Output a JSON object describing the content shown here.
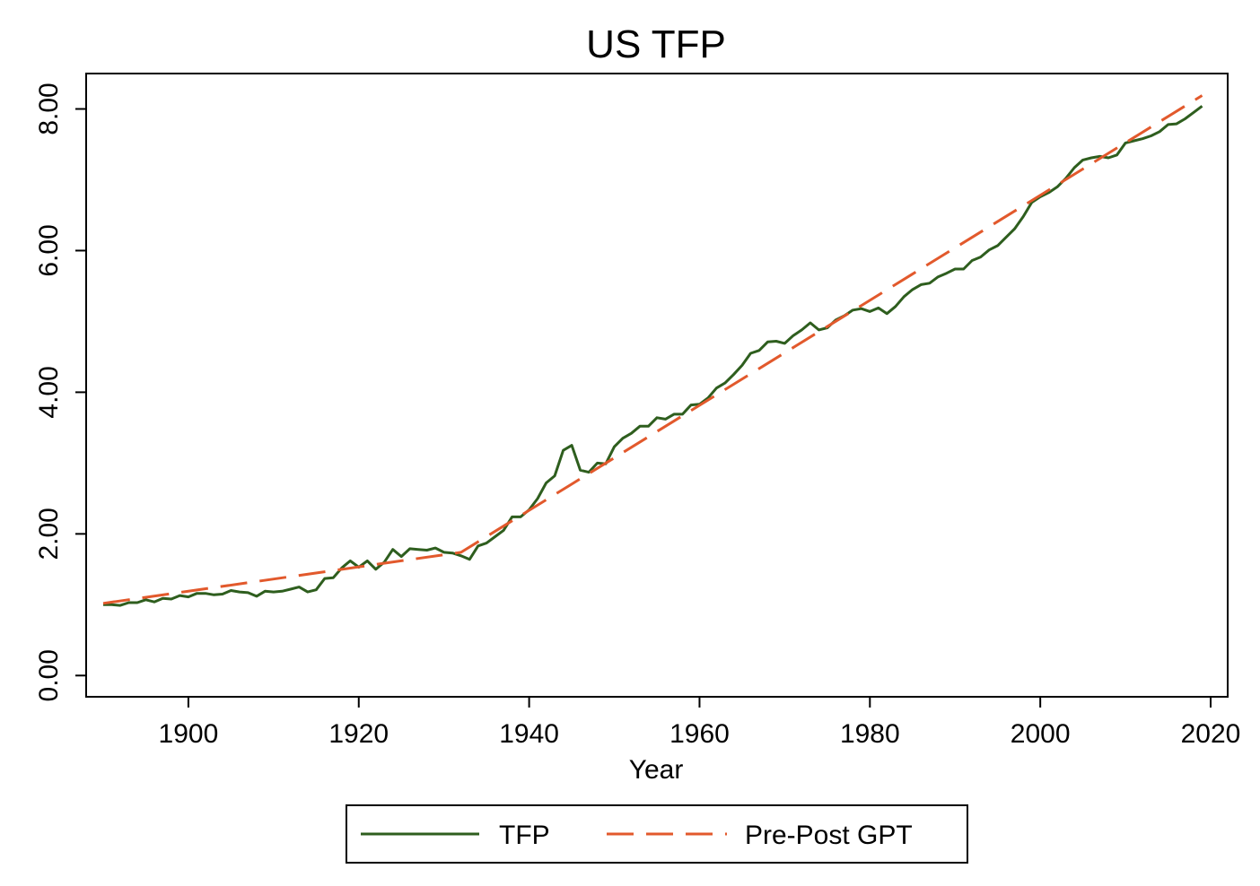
{
  "chart_data": {
    "type": "line",
    "title": "US TFP",
    "xlabel": "Year",
    "ylabel": "",
    "xlim": [
      1888,
      2022
    ],
    "ylim": [
      -0.3,
      8.5
    ],
    "xticks": [
      1900,
      1920,
      1940,
      1960,
      1980,
      2000,
      2020
    ],
    "xtick_labels": [
      "1900",
      "1920",
      "1940",
      "1960",
      "1980",
      "2000",
      "2020"
    ],
    "yticks": [
      0,
      2,
      4,
      6,
      8
    ],
    "ytick_labels": [
      "0.00",
      "2.00",
      "4.00",
      "6.00",
      "8.00"
    ],
    "grid": false,
    "legend_position": "bottom",
    "series": [
      {
        "name": "TFP",
        "color": "#2e5e1e",
        "style": "solid",
        "x": [
          1890,
          1891,
          1892,
          1893,
          1894,
          1895,
          1896,
          1897,
          1898,
          1899,
          1900,
          1901,
          1902,
          1903,
          1904,
          1905,
          1906,
          1907,
          1908,
          1909,
          1910,
          1911,
          1912,
          1913,
          1914,
          1915,
          1916,
          1917,
          1918,
          1919,
          1920,
          1921,
          1922,
          1923,
          1924,
          1925,
          1926,
          1927,
          1928,
          1929,
          1930,
          1931,
          1932,
          1933,
          1934,
          1935,
          1936,
          1937,
          1938,
          1939,
          1940,
          1941,
          1942,
          1943,
          1944,
          1945,
          1946,
          1947,
          1948,
          1949,
          1950,
          1951,
          1952,
          1953,
          1954,
          1955,
          1956,
          1957,
          1958,
          1959,
          1960,
          1961,
          1962,
          1963,
          1964,
          1965,
          1966,
          1967,
          1968,
          1969,
          1970,
          1971,
          1972,
          1973,
          1974,
          1975,
          1976,
          1977,
          1978,
          1979,
          1980,
          1981,
          1982,
          1983,
          1984,
          1985,
          1986,
          1987,
          1988,
          1989,
          1990,
          1991,
          1992,
          1993,
          1994,
          1995,
          1996,
          1997,
          1998,
          1999,
          2000,
          2001,
          2002,
          2003,
          2004,
          2005,
          2006,
          2007,
          2008,
          2009,
          2010,
          2011,
          2012,
          2013,
          2014,
          2015,
          2016,
          2017,
          2018,
          2019
        ],
        "values": [
          1.0,
          1.0,
          0.99,
          1.03,
          1.03,
          1.07,
          1.04,
          1.09,
          1.08,
          1.13,
          1.11,
          1.16,
          1.16,
          1.14,
          1.15,
          1.2,
          1.18,
          1.17,
          1.12,
          1.19,
          1.18,
          1.19,
          1.22,
          1.25,
          1.18,
          1.21,
          1.37,
          1.38,
          1.52,
          1.62,
          1.53,
          1.62,
          1.5,
          1.6,
          1.78,
          1.68,
          1.79,
          1.78,
          1.77,
          1.8,
          1.74,
          1.73,
          1.69,
          1.64,
          1.83,
          1.87,
          1.96,
          2.05,
          2.24,
          2.24,
          2.34,
          2.5,
          2.72,
          2.82,
          3.18,
          3.25,
          2.9,
          2.87,
          3.0,
          2.99,
          3.23,
          3.35,
          3.42,
          3.52,
          3.52,
          3.64,
          3.62,
          3.69,
          3.69,
          3.82,
          3.83,
          3.92,
          4.06,
          4.13,
          4.25,
          4.38,
          4.55,
          4.59,
          4.71,
          4.72,
          4.69,
          4.8,
          4.88,
          4.98,
          4.88,
          4.91,
          5.02,
          5.08,
          5.16,
          5.18,
          5.14,
          5.19,
          5.11,
          5.21,
          5.35,
          5.45,
          5.52,
          5.54,
          5.63,
          5.68,
          5.74,
          5.74,
          5.86,
          5.91,
          6.01,
          6.07,
          6.19,
          6.31,
          6.48,
          6.68,
          6.76,
          6.82,
          6.9,
          7.02,
          7.17,
          7.28,
          7.31,
          7.33,
          7.31,
          7.35,
          7.52,
          7.55,
          7.58,
          7.62,
          7.68,
          7.78,
          7.79,
          7.86,
          7.95,
          8.04
        ]
      },
      {
        "name": "Pre-Post GPT",
        "color": "#e2592c",
        "style": "dashed",
        "x": [
          1890,
          1932,
          2019
        ],
        "values": [
          1.02,
          1.74,
          8.19
        ]
      }
    ]
  }
}
